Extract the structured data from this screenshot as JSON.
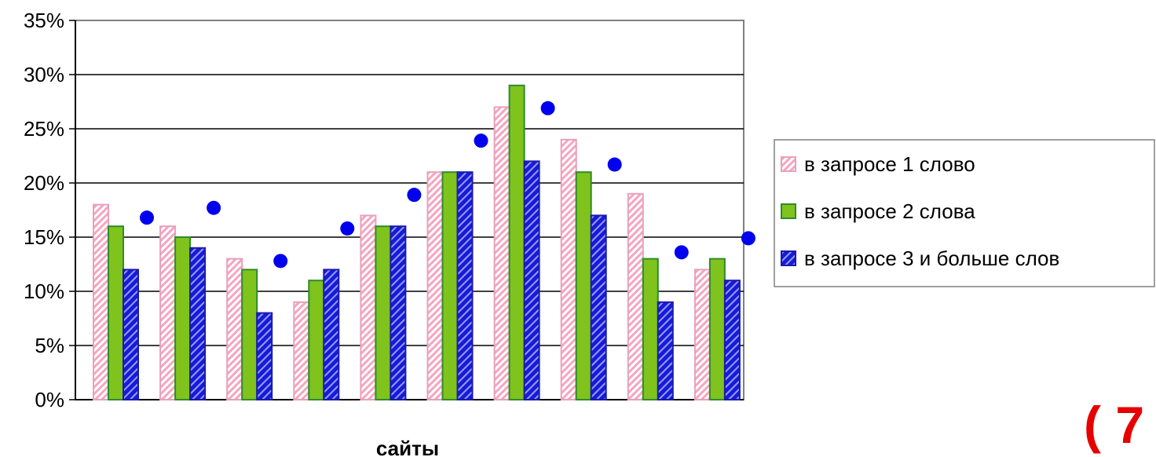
{
  "chart_data": {
    "type": "bar",
    "xlabel": "сайты",
    "ylabel": "",
    "ylim": [
      0,
      35
    ],
    "y_ticks": [
      "0%",
      "5%",
      "10%",
      "15%",
      "20%",
      "25%",
      "30%",
      "35%"
    ],
    "grid": true,
    "legend_position": "right",
    "categories": [
      "",
      "",
      "",
      "",
      "",
      "",
      "",
      "",
      "",
      ""
    ],
    "series": [
      {
        "name": "в запросе 1 слово",
        "kind": "bar",
        "pattern": "pink-hatched",
        "color": "#f4a6c0",
        "values": [
          18,
          16,
          13,
          9,
          17,
          21,
          27,
          24,
          19,
          12
        ]
      },
      {
        "name": "в запросе 2 слова",
        "kind": "bar",
        "pattern": "solid",
        "color": "#7fc31c",
        "values": [
          16,
          15,
          12,
          11,
          16,
          21,
          29,
          21,
          13,
          13
        ]
      },
      {
        "name": "в запросе 3 и больше слов",
        "kind": "bar",
        "pattern": "blue-hatched",
        "color": "#1f1fe6",
        "values": [
          12,
          14,
          8,
          12,
          16,
          21,
          22,
          17,
          9,
          11
        ]
      },
      {
        "kind": "scatter",
        "color": "#0000ee",
        "values": [
          16.8,
          17.7,
          12.8,
          15.8,
          18.9,
          23.9,
          26.9,
          21.7,
          13.6,
          14.9
        ]
      }
    ]
  },
  "corner_text": "( 7",
  "colors": {
    "pink_edge": "#e8a0bc",
    "green_edge": "#2e8b2e",
    "blue_edge": "#1a1aa8",
    "dot": "#0000ee"
  }
}
